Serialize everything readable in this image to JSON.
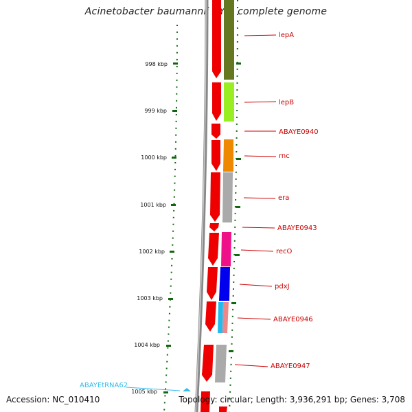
{
  "title": "Acinetobacter baumannii AYE, complete genome",
  "accession": "Accession: NC_010410",
  "summary": "Topology: circular; Length: 3,936,291 bp; Genes: 3,708",
  "colors": {
    "backbone": "#888888",
    "tick": "#116611",
    "cds_forward": "#ee0000",
    "label_red": "#cc0000",
    "label_rna": "#33bbee"
  },
  "ticks": [
    {
      "label": "998 kbp"
    },
    {
      "label": "999 kbp"
    },
    {
      "label": "1000 kbp"
    },
    {
      "label": "1001 kbp"
    },
    {
      "label": "1002 kbp"
    },
    {
      "label": "1003 kbp"
    },
    {
      "label": "1004 kbp"
    },
    {
      "label": "1005 kbp"
    }
  ],
  "genes": [
    {
      "name": "lepA",
      "cog_color": "#667722"
    },
    {
      "name": "lepB",
      "cog_color": "#99ee22"
    },
    {
      "name": "ABAYE0940",
      "cog_color": ""
    },
    {
      "name": "rnc",
      "cog_color": "#ee8800"
    },
    {
      "name": "era",
      "cog_color": "#aaaaaa"
    },
    {
      "name": "ABAYE0943",
      "cog_color": ""
    },
    {
      "name": "recO",
      "cog_color": "#ee1188"
    },
    {
      "name": "pdxJ",
      "cog_color": "#0000ee"
    },
    {
      "name": "ABAYE0946",
      "cog_color": "#22bbee"
    },
    {
      "name": "ABAYE0947",
      "cog_color": "#aaaaaa"
    }
  ],
  "rna": {
    "name": "ABAYEtRNA62"
  }
}
